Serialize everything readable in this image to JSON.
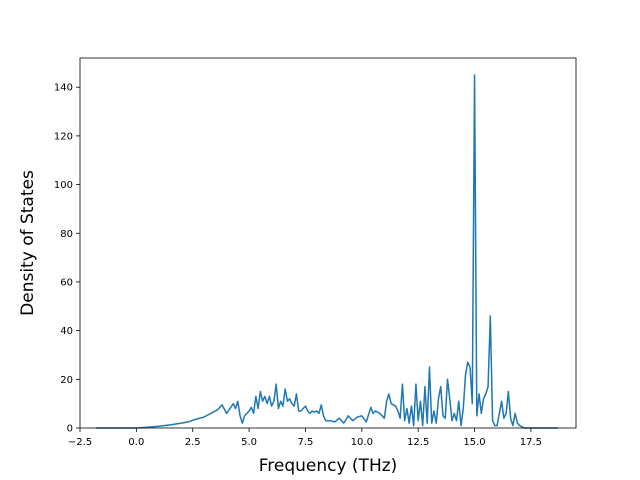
{
  "chart_data": {
    "type": "line",
    "title": "",
    "xlabel": "Frequency (THz)",
    "ylabel": "Density of States",
    "xlim": [
      -2.5,
      19.5
    ],
    "ylim": [
      0,
      152
    ],
    "grid": false,
    "legend": "none",
    "color": "#1f77b4",
    "x_ticks": [
      -2.5,
      0.0,
      2.5,
      5.0,
      7.5,
      10.0,
      12.5,
      15.0,
      17.5
    ],
    "x_tick_labels": [
      "−2.5",
      "0.0",
      "2.5",
      "5.0",
      "7.5",
      "10.0",
      "12.5",
      "15.0",
      "17.5"
    ],
    "y_ticks": [
      0,
      20,
      40,
      60,
      80,
      100,
      120,
      140
    ],
    "y_tick_labels": [
      "0",
      "20",
      "40",
      "60",
      "80",
      "100",
      "120",
      "140"
    ],
    "series": [
      {
        "x": [
          -1.8,
          -1.0,
          -0.5,
          0.0,
          0.5,
          1.0,
          1.5,
          2.0,
          2.3,
          2.6,
          2.8,
          3.0,
          3.2,
          3.4,
          3.6,
          3.8,
          4.0,
          4.15,
          4.3,
          4.4,
          4.5,
          4.6,
          4.7,
          4.8,
          4.9,
          5.0,
          5.1,
          5.2,
          5.3,
          5.4,
          5.5,
          5.6,
          5.7,
          5.8,
          5.9,
          6.0,
          6.1,
          6.2,
          6.3,
          6.4,
          6.5,
          6.6,
          6.7,
          6.8,
          6.9,
          7.0,
          7.1,
          7.2,
          7.3,
          7.4,
          7.5,
          7.6,
          7.7,
          7.8,
          7.9,
          8.0,
          8.1,
          8.2,
          8.3,
          8.4,
          8.6,
          8.8,
          9.0,
          9.2,
          9.4,
          9.6,
          9.8,
          10.0,
          10.2,
          10.4,
          10.5,
          10.6,
          10.8,
          11.0,
          11.1,
          11.2,
          11.3,
          11.5,
          11.6,
          11.7,
          11.8,
          11.9,
          12.0,
          12.1,
          12.2,
          12.3,
          12.4,
          12.5,
          12.6,
          12.7,
          12.8,
          12.9,
          13.0,
          13.1,
          13.2,
          13.3,
          13.4,
          13.5,
          13.6,
          13.7,
          13.8,
          13.9,
          14.0,
          14.1,
          14.2,
          14.3,
          14.4,
          14.5,
          14.6,
          14.7,
          14.8,
          14.9,
          15.0,
          15.1,
          15.2,
          15.3,
          15.4,
          15.5,
          15.6,
          15.7,
          15.8,
          15.9,
          16.0,
          16.1,
          16.2,
          16.3,
          16.4,
          16.5,
          16.6,
          16.7,
          16.8,
          16.9,
          17.0,
          17.2,
          17.5,
          18.0,
          18.5,
          18.7
        ],
        "y": [
          0,
          0,
          0,
          0,
          0.3,
          0.7,
          1.3,
          2,
          2.5,
          3.5,
          4,
          4.5,
          5.5,
          6.5,
          7.5,
          9.5,
          6,
          8,
          10,
          8,
          11,
          5,
          2,
          5,
          6,
          7,
          8.5,
          6,
          13,
          8,
          15,
          11,
          13,
          10,
          13,
          9,
          11,
          18,
          8,
          11,
          9,
          16,
          11,
          12,
          10,
          9,
          14,
          7,
          7,
          8,
          9,
          7,
          6,
          7,
          6.5,
          7,
          6,
          9.5,
          5,
          3,
          3,
          2.5,
          4,
          2,
          5,
          3,
          4.5,
          5,
          2.5,
          8.5,
          6,
          7,
          6,
          4,
          11,
          14,
          10,
          9,
          7,
          4,
          18,
          3,
          8,
          2,
          9,
          1,
          18,
          3,
          11,
          1,
          17,
          2,
          25,
          2,
          7,
          2,
          12,
          17,
          5,
          4,
          20,
          12,
          3,
          6,
          3,
          11,
          1,
          8,
          22,
          27,
          25,
          10,
          145,
          5,
          14,
          6,
          12,
          14,
          17,
          46,
          3,
          1,
          1,
          6,
          11,
          4,
          6,
          15,
          4,
          1,
          6,
          2,
          1,
          0,
          0,
          0,
          0,
          0
        ]
      }
    ]
  }
}
